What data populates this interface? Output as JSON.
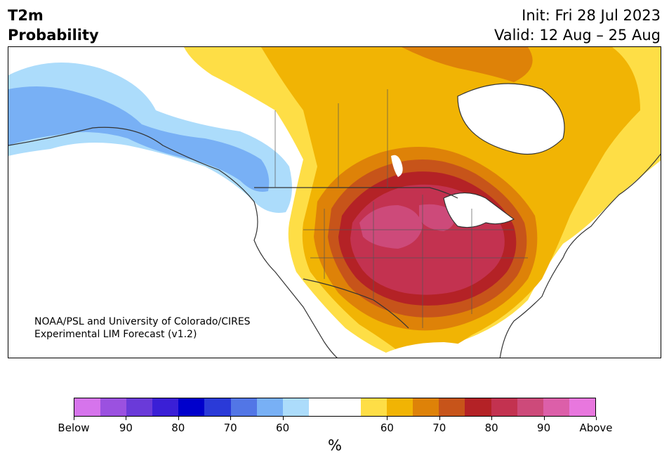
{
  "header": {
    "variable": "T2m",
    "product": "Probability",
    "init_line": "Init: Fri 28 Jul 2023",
    "valid_line": "Valid: 12 Aug – 25 Aug"
  },
  "credit": {
    "line1": "NOAA/PSL and University of Colorado/CIRES",
    "line2": "Experimental LIM Forecast (v1.2)"
  },
  "colorbar": {
    "unit": "%",
    "colors": [
      "#d674ec",
      "#9b51e0",
      "#6a3ad9",
      "#3a1fd6",
      "#0000cc",
      "#2a3ad8",
      "#5276e6",
      "#78b0f5",
      "#acdcfb",
      "#ffffff",
      "#ffffff",
      "#fede46",
      "#f1b404",
      "#de8208",
      "#c7541a",
      "#b42226",
      "#c33250",
      "#cd4a7a",
      "#dc5fa9",
      "#e877de"
    ],
    "tick_labels": [
      "Below",
      "90",
      "80",
      "70",
      "60",
      "60",
      "70",
      "80",
      "90",
      "Above"
    ]
  },
  "map": {
    "region": "North America",
    "legend_note": "Below-normal shades on left (blue/purple), above-normal shades on right (yellow/red/pink)"
  }
}
